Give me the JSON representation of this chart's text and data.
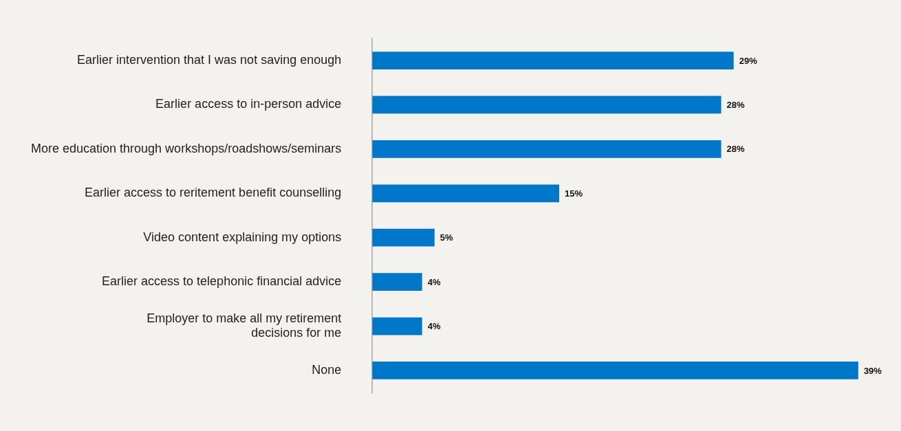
{
  "chart_data": {
    "type": "bar",
    "orientation": "horizontal",
    "categories": [
      "Earlier intervention that I was not saving enough",
      "Earlier access to in-person advice",
      "More education through workshops/roadshows/seminars",
      "Earlier access to reritement benefit counselling",
      "Video content explaining my options",
      "Earlier access to telephonic financial advice",
      "Employer to make all my retirement decisions for me",
      "None"
    ],
    "values": [
      29,
      28,
      28,
      15,
      5,
      4,
      4,
      39
    ],
    "value_labels": [
      "29%",
      "28%",
      "28%",
      "15%",
      "5%",
      "4%",
      "4%",
      "39%"
    ],
    "color": "#0077c8"
  }
}
